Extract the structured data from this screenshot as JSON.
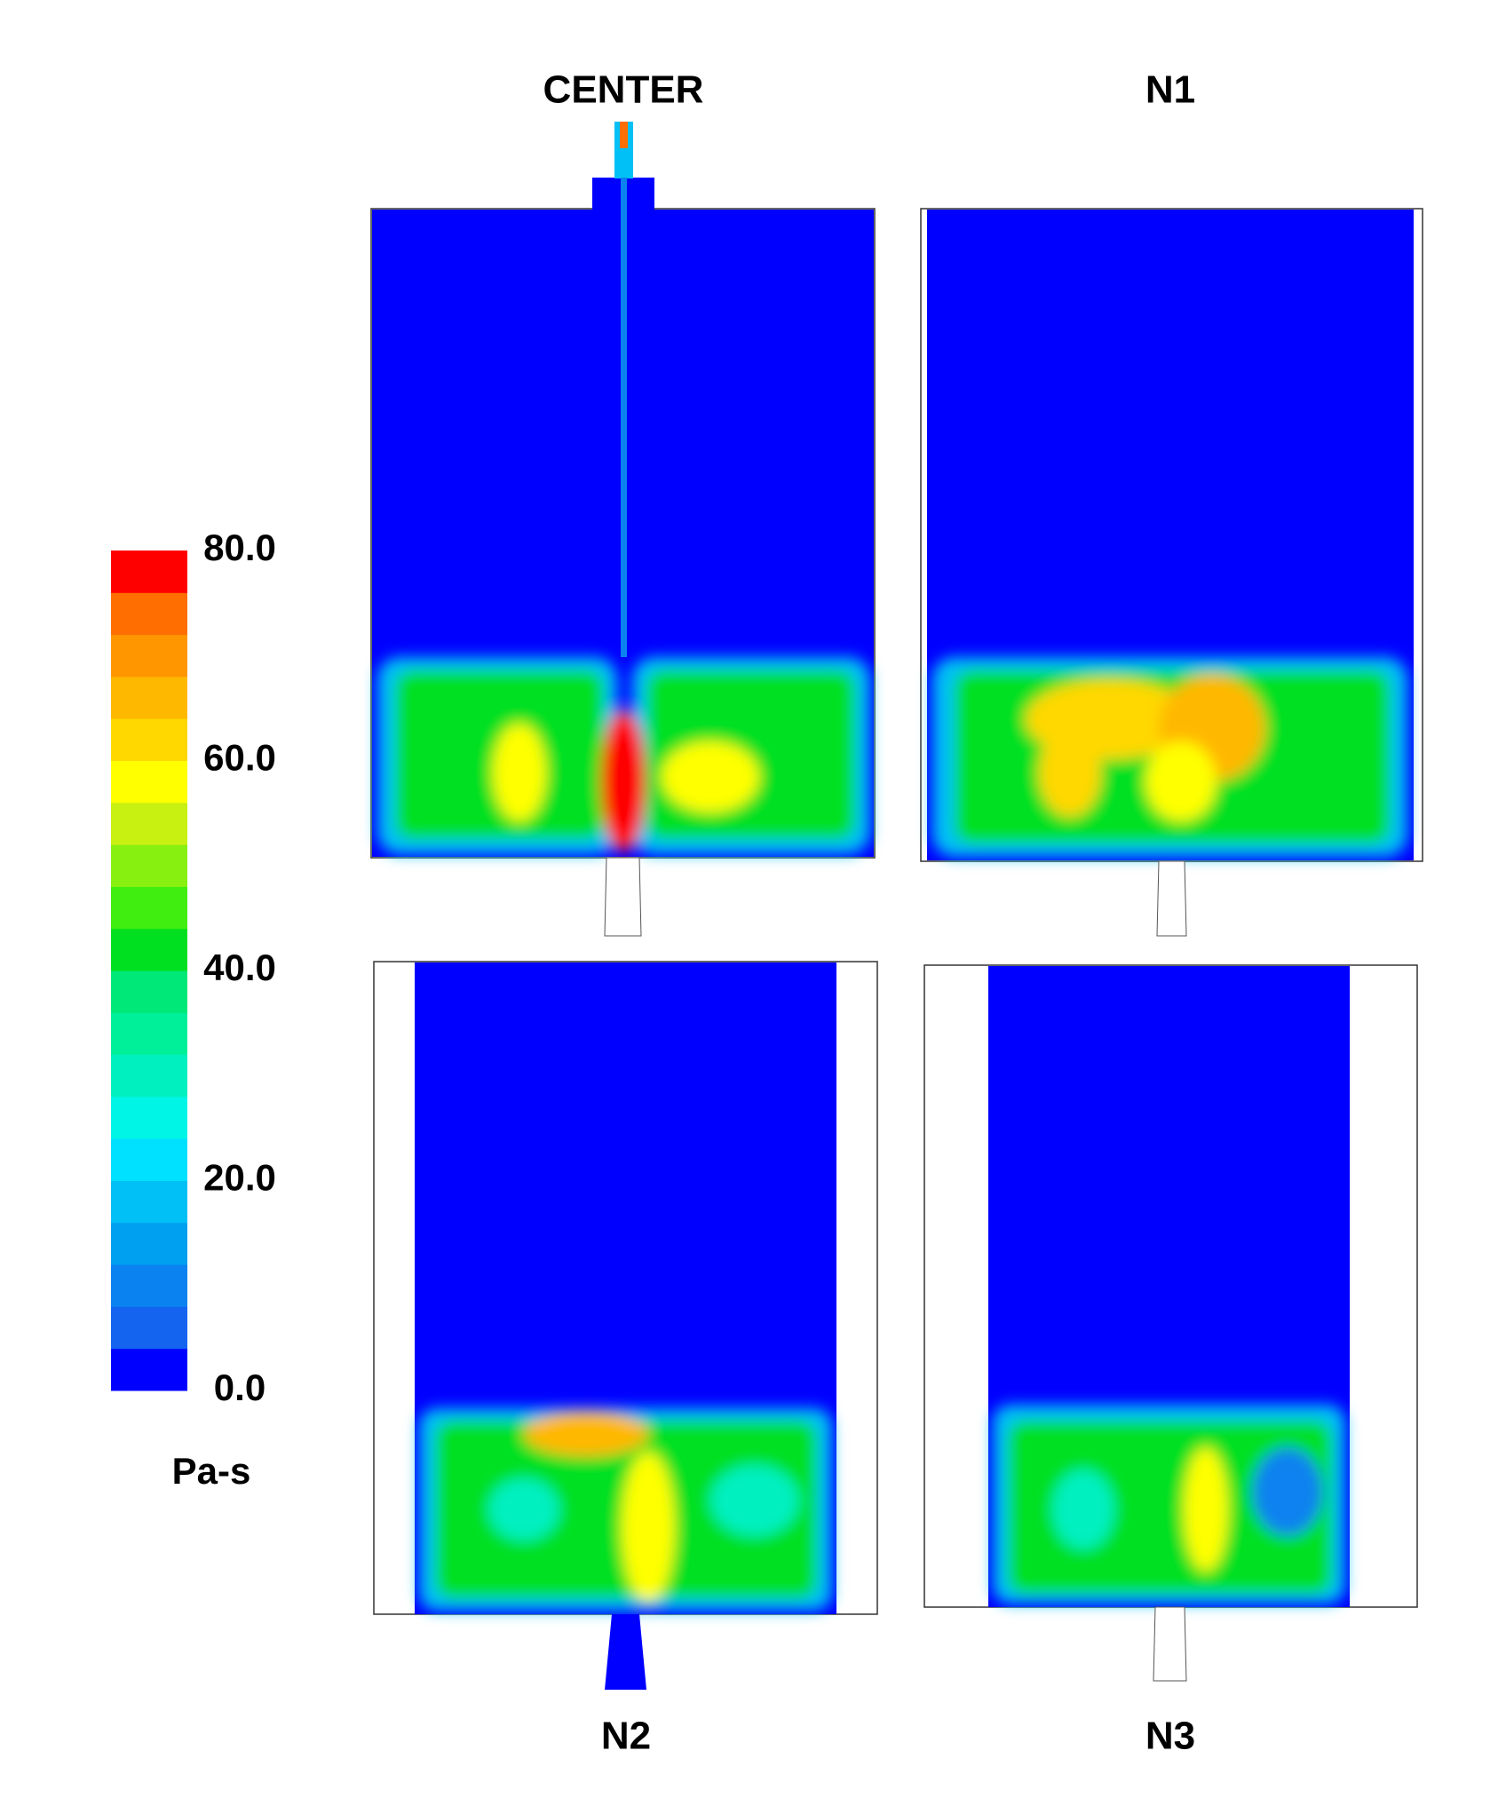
{
  "chart_data": {
    "type": "contour",
    "panels": [
      {
        "title": "CENTER"
      },
      {
        "title": "N1"
      },
      {
        "title": "N2"
      },
      {
        "title": "N3"
      }
    ],
    "colorbar": {
      "label": "Pa-s",
      "lim": [
        0,
        80
      ],
      "ticks": [
        {
          "value": 0,
          "label": "0.0"
        },
        {
          "value": 20,
          "label": "20.0"
        },
        {
          "value": 40,
          "label": "40.0"
        },
        {
          "value": 60,
          "label": "60.0"
        },
        {
          "value": 80,
          "label": "80.0"
        }
      ],
      "colors": [
        "#0000ff",
        "#1464f0",
        "#0a82f0",
        "#00a0f0",
        "#00c0f5",
        "#00e0ff",
        "#00f5e6",
        "#00f0c0",
        "#00f09a",
        "#00e878",
        "#00e020",
        "#40ee10",
        "#88f010",
        "#c8f010",
        "#ffff00",
        "#ffd800",
        "#ffb800",
        "#ff9600",
        "#ff6e00",
        "#ff0000"
      ]
    }
  }
}
